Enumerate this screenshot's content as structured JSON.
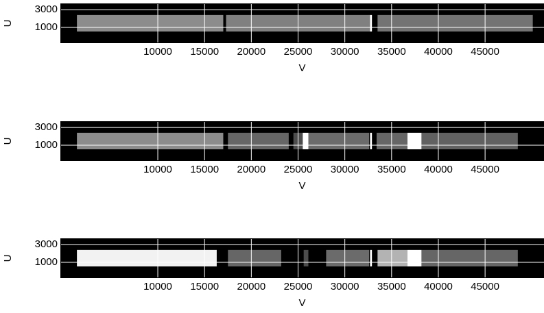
{
  "chart_data": [
    {
      "type": "heatmap",
      "xlabel": "V",
      "ylabel": "U",
      "xlim": [
        -420,
        51300
      ],
      "ylim": [
        -770,
        3700
      ],
      "xticks": [
        10000,
        15000,
        20000,
        25000,
        30000,
        35000,
        40000,
        45000
      ],
      "yticks": [
        1000,
        3000
      ],
      "grid": true,
      "grid_color": "#ffffff",
      "band": [
        540,
        2400
      ],
      "segments": [
        {
          "x": [
            1350,
            17000
          ],
          "level": 0.55
        },
        {
          "x": [
            17300,
            32700
          ],
          "level": 0.5
        },
        {
          "x": [
            32700,
            32900
          ],
          "level": 1
        },
        {
          "x": [
            33500,
            50100
          ],
          "level": 0.45
        }
      ]
    },
    {
      "type": "heatmap",
      "xlabel": "V",
      "ylabel": "U",
      "xlim": [
        -420,
        51300
      ],
      "ylim": [
        -770,
        3700
      ],
      "xticks": [
        10000,
        15000,
        20000,
        25000,
        30000,
        35000,
        40000,
        45000
      ],
      "yticks": [
        1000,
        3000
      ],
      "grid": true,
      "grid_color": "#ffffff",
      "band": [
        540,
        2400
      ],
      "segments": [
        {
          "x": [
            1350,
            17000
          ],
          "level": 0.55
        },
        {
          "x": [
            17500,
            24000
          ],
          "level": 0.4
        },
        {
          "x": [
            24500,
            25500
          ],
          "level": 0.3
        },
        {
          "x": [
            25500,
            26100
          ],
          "level": 1
        },
        {
          "x": [
            26100,
            32600
          ],
          "level": 0.42
        },
        {
          "x": [
            32700,
            32900
          ],
          "level": 1
        },
        {
          "x": [
            33400,
            36700
          ],
          "level": 0.4
        },
        {
          "x": [
            36700,
            38200
          ],
          "level": 1
        },
        {
          "x": [
            38200,
            48500
          ],
          "level": 0.38
        }
      ]
    },
    {
      "type": "heatmap",
      "xlabel": "V",
      "ylabel": "U",
      "xlim": [
        -420,
        51300
      ],
      "ylim": [
        -770,
        3700
      ],
      "xticks": [
        10000,
        15000,
        20000,
        25000,
        30000,
        35000,
        40000,
        45000
      ],
      "yticks": [
        1000,
        3000
      ],
      "grid": true,
      "grid_color": "#ffffff",
      "band": [
        540,
        2400
      ],
      "segments": [
        {
          "x": [
            1350,
            16300
          ],
          "level": 0.95
        },
        {
          "x": [
            17500,
            23200
          ],
          "level": 0.4
        },
        {
          "x": [
            25600,
            26100
          ],
          "level": 0.3
        },
        {
          "x": [
            28000,
            32600
          ],
          "level": 0.42
        },
        {
          "x": [
            32700,
            32900
          ],
          "level": 1
        },
        {
          "x": [
            33500,
            36700
          ],
          "level": 0.7
        },
        {
          "x": [
            36700,
            38200
          ],
          "level": 1
        },
        {
          "x": [
            38200,
            48500
          ],
          "level": 0.4
        }
      ]
    }
  ]
}
